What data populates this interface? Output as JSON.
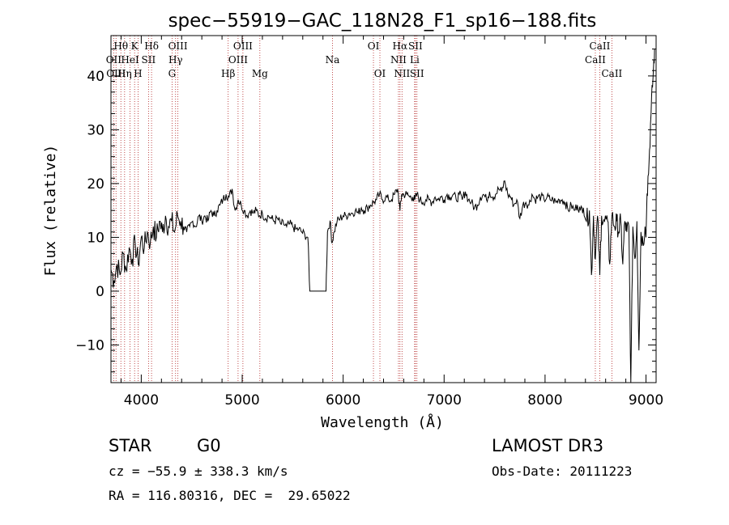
{
  "chart_data": {
    "type": "line",
    "title": "spec−55919−GAC_118N28_F1_sp16−188.fits",
    "xlabel": "Wavelength (Å)",
    "ylabel": "Flux (relative)",
    "xlim": [
      3700,
      9100
    ],
    "ylim": [
      -17,
      47.5
    ],
    "xticks": [
      4000,
      5000,
      6000,
      7000,
      8000,
      9000
    ],
    "yticks": [
      -10,
      0,
      10,
      20,
      30,
      40
    ],
    "ytick_labels": [
      "−10",
      "0",
      "10",
      "20",
      "30",
      "40"
    ],
    "grid": false,
    "spectrum": [
      [
        3700,
        4
      ],
      [
        3730,
        2
      ],
      [
        3760,
        5
      ],
      [
        3790,
        3
      ],
      [
        3820,
        7
      ],
      [
        3850,
        4
      ],
      [
        3880,
        8
      ],
      [
        3910,
        6
      ],
      [
        3940,
        9
      ],
      [
        3970,
        5
      ],
      [
        4000,
        10
      ],
      [
        4030,
        8
      ],
      [
        4060,
        11
      ],
      [
        4090,
        9
      ],
      [
        4120,
        12
      ],
      [
        4150,
        10
      ],
      [
        4180,
        13
      ],
      [
        4210,
        11
      ],
      [
        4240,
        14
      ],
      [
        4270,
        12
      ],
      [
        4300,
        13
      ],
      [
        4330,
        11
      ],
      [
        4360,
        14
      ],
      [
        4390,
        13
      ],
      [
        4420,
        12
      ],
      [
        4450,
        11
      ],
      [
        4480,
        12
      ],
      [
        4510,
        13
      ],
      [
        4540,
        12
      ],
      [
        4570,
        14
      ],
      [
        4600,
        13
      ],
      [
        4630,
        14
      ],
      [
        4660,
        13
      ],
      [
        4690,
        15
      ],
      [
        4720,
        14
      ],
      [
        4750,
        15
      ],
      [
        4780,
        16
      ],
      [
        4810,
        17
      ],
      [
        4840,
        18
      ],
      [
        4870,
        17.5
      ],
      [
        4900,
        19
      ],
      [
        4930,
        15
      ],
      [
        4960,
        17
      ],
      [
        4990,
        16
      ],
      [
        5020,
        15
      ],
      [
        5050,
        14
      ],
      [
        5080,
        15
      ],
      [
        5110,
        14.5
      ],
      [
        5140,
        15
      ],
      [
        5170,
        14
      ],
      [
        5200,
        14.5
      ],
      [
        5230,
        13.5
      ],
      [
        5260,
        14
      ],
      [
        5290,
        13.5
      ],
      [
        5320,
        13
      ],
      [
        5350,
        13.5
      ],
      [
        5380,
        12.5
      ],
      [
        5410,
        12.5
      ],
      [
        5440,
        12
      ],
      [
        5470,
        12.5
      ],
      [
        5500,
        12
      ],
      [
        5530,
        11.5
      ],
      [
        5560,
        11.5
      ],
      [
        5590,
        11
      ],
      [
        5620,
        10.5
      ],
      [
        5650,
        10
      ],
      [
        5670,
        0
      ],
      [
        5830,
        0
      ],
      [
        5845,
        11
      ],
      [
        5870,
        13
      ],
      [
        5890,
        9
      ],
      [
        5910,
        11
      ],
      [
        5940,
        13
      ],
      [
        5970,
        13.5
      ],
      [
        6000,
        14
      ],
      [
        6030,
        14
      ],
      [
        6060,
        14.5
      ],
      [
        6090,
        14.5
      ],
      [
        6120,
        15
      ],
      [
        6150,
        14.5
      ],
      [
        6180,
        15.5
      ],
      [
        6210,
        15
      ],
      [
        6240,
        15.5
      ],
      [
        6270,
        16
      ],
      [
        6300,
        16.5
      ],
      [
        6330,
        17
      ],
      [
        6360,
        18
      ],
      [
        6390,
        17
      ],
      [
        6420,
        17.5
      ],
      [
        6450,
        17
      ],
      [
        6480,
        17
      ],
      [
        6510,
        18
      ],
      [
        6540,
        19
      ],
      [
        6563,
        15
      ],
      [
        6580,
        18
      ],
      [
        6600,
        18
      ],
      [
        6630,
        18
      ],
      [
        6660,
        17.5
      ],
      [
        6690,
        17.5
      ],
      [
        6710,
        17
      ],
      [
        6730,
        18
      ],
      [
        6760,
        17
      ],
      [
        6790,
        16.5
      ],
      [
        6820,
        17
      ],
      [
        6850,
        17
      ],
      [
        6880,
        16.5
      ],
      [
        6910,
        17.5
      ],
      [
        6940,
        17
      ],
      [
        6970,
        17.5
      ],
      [
        7000,
        17
      ],
      [
        7030,
        18
      ],
      [
        7060,
        17.5
      ],
      [
        7090,
        18
      ],
      [
        7120,
        17
      ],
      [
        7150,
        18
      ],
      [
        7180,
        17
      ],
      [
        7210,
        18.5
      ],
      [
        7240,
        17
      ],
      [
        7270,
        16.5
      ],
      [
        7300,
        15.5
      ],
      [
        7330,
        16
      ],
      [
        7360,
        17.5
      ],
      [
        7390,
        18
      ],
      [
        7420,
        17
      ],
      [
        7450,
        18.5
      ],
      [
        7480,
        17.5
      ],
      [
        7510,
        18
      ],
      [
        7540,
        19
      ],
      [
        7570,
        18.5
      ],
      [
        7600,
        20.5
      ],
      [
        7630,
        18
      ],
      [
        7660,
        17.5
      ],
      [
        7690,
        16
      ],
      [
        7720,
        17
      ],
      [
        7750,
        13.5
      ],
      [
        7780,
        16
      ],
      [
        7810,
        16.5
      ],
      [
        7840,
        16
      ],
      [
        7870,
        18
      ],
      [
        7900,
        17
      ],
      [
        7930,
        17.5
      ],
      [
        7960,
        17.5
      ],
      [
        7990,
        17
      ],
      [
        8020,
        17.5
      ],
      [
        8050,
        17
      ],
      [
        8080,
        17
      ],
      [
        8110,
        16.5
      ],
      [
        8140,
        17
      ],
      [
        8170,
        17
      ],
      [
        8200,
        16.5
      ],
      [
        8230,
        15
      ],
      [
        8260,
        16
      ],
      [
        8290,
        15
      ],
      [
        8320,
        16
      ],
      [
        8350,
        15
      ],
      [
        8380,
        15.5
      ],
      [
        8410,
        13
      ],
      [
        8440,
        15
      ],
      [
        8460,
        3
      ],
      [
        8480,
        14
      ],
      [
        8498,
        6
      ],
      [
        8520,
        14
      ],
      [
        8542,
        3
      ],
      [
        8560,
        14
      ],
      [
        8590,
        13
      ],
      [
        8620,
        13
      ],
      [
        8640,
        5
      ],
      [
        8662,
        14
      ],
      [
        8690,
        12
      ],
      [
        8710,
        13
      ],
      [
        8730,
        11
      ],
      [
        8750,
        13
      ],
      [
        8770,
        5
      ],
      [
        8790,
        13
      ],
      [
        8810,
        11
      ],
      [
        8830,
        12
      ],
      [
        8850,
        -17
      ],
      [
        8870,
        12
      ],
      [
        8890,
        6
      ],
      [
        8910,
        13
      ],
      [
        8930,
        -11
      ],
      [
        8950,
        11
      ],
      [
        8970,
        9
      ],
      [
        8990,
        12
      ],
      [
        9000,
        10
      ],
      [
        9010,
        18
      ],
      [
        9030,
        24
      ],
      [
        9050,
        33
      ],
      [
        9070,
        40
      ],
      [
        9085,
        45
      ]
    ],
    "line_markers": [
      {
        "label": "Hθ",
        "wave": 3798,
        "row": 1
      },
      {
        "label": "OII",
        "wave": 3727,
        "row": 2
      },
      {
        "label": "OIII",
        "wave": 3750,
        "row": 3
      },
      {
        "label": "K",
        "wave": 3934,
        "row": 1
      },
      {
        "label": "HeI",
        "wave": 3889,
        "row": 2
      },
      {
        "label": "Hη",
        "wave": 3835,
        "row": 3
      },
      {
        "label": "H",
        "wave": 3968,
        "row": 3
      },
      {
        "label": "Hδ",
        "wave": 4102,
        "row": 1
      },
      {
        "label": "SII",
        "wave": 4072,
        "row": 2
      },
      {
        "label": "OIII",
        "wave": 4363,
        "row": 1
      },
      {
        "label": "Hγ",
        "wave": 4340,
        "row": 2
      },
      {
        "label": "G",
        "wave": 4305,
        "row": 3
      },
      {
        "label": "OIII",
        "wave": 5007,
        "row": 1
      },
      {
        "label": "OIII",
        "wave": 4959,
        "row": 2
      },
      {
        "label": "Hβ",
        "wave": 4861,
        "row": 3
      },
      {
        "label": "Mg",
        "wave": 5175,
        "row": 3
      },
      {
        "label": "Na",
        "wave": 5894,
        "row": 2
      },
      {
        "label": "OI",
        "wave": 6300,
        "row": 1
      },
      {
        "label": "OI",
        "wave": 6364,
        "row": 3
      },
      {
        "label": "Hα",
        "wave": 6563,
        "row": 1
      },
      {
        "label": "NII",
        "wave": 6548,
        "row": 2
      },
      {
        "label": "NII",
        "wave": 6583,
        "row": 3
      },
      {
        "label": "SII",
        "wave": 6716,
        "row": 1
      },
      {
        "label": "Li",
        "wave": 6708,
        "row": 2
      },
      {
        "label": "SII",
        "wave": 6731,
        "row": 3
      },
      {
        "label": "CaII",
        "wave": 8542,
        "row": 1
      },
      {
        "label": "CaII",
        "wave": 8498,
        "row": 2
      },
      {
        "label": "CaII",
        "wave": 8662,
        "row": 3
      }
    ],
    "colors": {
      "spectrum": "#000000",
      "markers": "#b22222",
      "labels": "#000000"
    }
  },
  "info": {
    "object_class": "STAR",
    "subclass": "G0",
    "survey": "LAMOST DR3",
    "redshift_text": "cz = −55.9 ± 338.3 km/s",
    "obs_date_text": "Obs-Date: 20111223",
    "coords_text": "RA = 116.80316, DEC =  29.65022"
  }
}
